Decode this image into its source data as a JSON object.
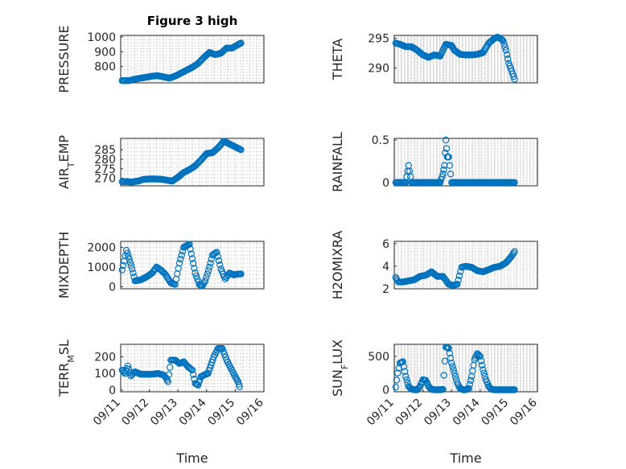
{
  "chart_data": [
    {
      "type": "scatter",
      "title": "Figure 3 high",
      "ylabel": "PRESSURE",
      "ylim": [
        690,
        1010
      ],
      "yticks": [
        800,
        900,
        1000
      ],
      "xlim": [
        0,
        5
      ],
      "xticks": [],
      "xticklabels": [],
      "xlabel": "",
      "grid": true,
      "x": [
        0.05,
        0.15,
        0.3,
        0.5,
        0.7,
        0.9,
        1.1,
        1.3,
        1.5,
        1.7,
        1.9,
        2.1,
        2.3,
        2.5,
        2.7,
        2.9,
        3.1,
        3.3,
        3.5,
        3.7,
        3.9,
        4.1,
        4.2
      ],
      "y": [
        705,
        705,
        705,
        715,
        722,
        728,
        735,
        738,
        730,
        722,
        735,
        755,
        775,
        795,
        820,
        860,
        895,
        880,
        890,
        925,
        925,
        948,
        958
      ]
    },
    {
      "type": "scatter",
      "ylabel": "THETA",
      "ylim": [
        287.5,
        295.5
      ],
      "yticks": [
        290,
        295
      ],
      "xlim": [
        0,
        5
      ],
      "xticks": [],
      "xticklabels": [],
      "xlabel": "",
      "grid": true,
      "x": [
        0.05,
        0.2,
        0.4,
        0.6,
        0.8,
        1.0,
        1.2,
        1.4,
        1.6,
        1.8,
        2.0,
        2.1,
        2.3,
        2.5,
        2.7,
        2.9,
        3.1,
        3.3,
        3.5,
        3.6,
        3.7,
        3.8,
        3.9,
        4.0,
        4.1,
        4.2
      ],
      "y": [
        294.2,
        294.0,
        293.6,
        293.6,
        293.0,
        292.2,
        291.8,
        292.2,
        292.0,
        294.0,
        293.8,
        293.0,
        292.3,
        292.2,
        292.2,
        292.3,
        292.6,
        294.2,
        295.0,
        295.2,
        295.0,
        294.6,
        293.0,
        290.8,
        289.5,
        288.1
      ]
    },
    {
      "type": "scatter",
      "ylabel": "AIR_TEMP",
      "ylim": [
        266,
        291
      ],
      "yticks": [
        270,
        275,
        280,
        285
      ],
      "xlim": [
        0,
        5
      ],
      "xticks": [],
      "xticklabels": [],
      "xlabel": "",
      "grid": true,
      "x": [
        0.05,
        0.2,
        0.4,
        0.6,
        0.8,
        1.0,
        1.2,
        1.4,
        1.6,
        1.8,
        2.0,
        2.2,
        2.4,
        2.6,
        2.8,
        3.0,
        3.2,
        3.4,
        3.6,
        3.8,
        4.0,
        4.2
      ],
      "y": [
        268.2,
        268.2,
        268.0,
        268.5,
        269.4,
        269.6,
        269.6,
        269.5,
        269.0,
        268.5,
        270.5,
        273.0,
        274.5,
        276.5,
        279.5,
        283.0,
        283.4,
        286.0,
        289.5,
        288.0,
        286.5,
        285.0
      ]
    },
    {
      "type": "scatter",
      "ylabel": "RAINFALL",
      "ylim": [
        -0.04,
        0.52
      ],
      "yticks": [
        0,
        0.5
      ],
      "xlim": [
        0,
        5
      ],
      "xticks": [],
      "xticklabels": [],
      "xlabel": "",
      "grid": true,
      "x": [
        0.05,
        0.2,
        0.3,
        0.4,
        0.5,
        0.6,
        0.8,
        1.0,
        1.2,
        1.4,
        1.5,
        1.6,
        1.7,
        1.75,
        1.8,
        1.85,
        1.9,
        2.0,
        2.2,
        2.4,
        2.6,
        2.8,
        3.0,
        3.2,
        3.4,
        3.6,
        3.8,
        4.0,
        4.2
      ],
      "y": [
        0,
        0,
        0,
        0,
        0.2,
        0,
        0,
        0,
        0,
        0,
        0,
        0,
        0.1,
        0.2,
        0.5,
        0.3,
        0.3,
        0,
        0,
        0,
        0,
        0,
        0,
        0,
        0,
        0,
        0,
        0,
        0
      ]
    },
    {
      "type": "scatter",
      "ylabel": "MIXDEPTH",
      "ylim": [
        -100,
        2300
      ],
      "yticks": [
        0,
        1000,
        2000
      ],
      "xlim": [
        0,
        5
      ],
      "xticks": [],
      "xticklabels": [],
      "xlabel": "",
      "grid": true,
      "x": [
        0.05,
        0.12,
        0.2,
        0.3,
        0.4,
        0.5,
        0.7,
        0.9,
        1.1,
        1.25,
        1.4,
        1.55,
        1.75,
        1.9,
        2.05,
        2.2,
        2.4,
        2.6,
        2.75,
        2.85,
        2.95,
        3.1,
        3.2,
        3.35,
        3.5,
        3.65,
        3.8,
        3.95,
        4.1,
        4.2
      ],
      "y": [
        850,
        1300,
        1850,
        1400,
        900,
        300,
        350,
        500,
        700,
        1000,
        850,
        650,
        200,
        120,
        1200,
        2000,
        2150,
        700,
        100,
        50,
        300,
        1000,
        1600,
        1750,
        900,
        400,
        700,
        600,
        650,
        650
      ]
    },
    {
      "type": "scatter",
      "ylabel": "H2OMIXRA",
      "ylim": [
        2,
        6.2
      ],
      "yticks": [
        2,
        4,
        6
      ],
      "xlim": [
        0,
        5
      ],
      "xticks": [],
      "xticklabels": [],
      "xlabel": "",
      "grid": true,
      "x": [
        0.05,
        0.15,
        0.3,
        0.5,
        0.7,
        0.9,
        1.1,
        1.3,
        1.5,
        1.7,
        1.9,
        2.05,
        2.2,
        2.35,
        2.5,
        2.7,
        2.9,
        3.1,
        3.3,
        3.5,
        3.7,
        3.9,
        4.1,
        4.2
      ],
      "y": [
        3.0,
        2.6,
        2.6,
        2.7,
        2.8,
        3.1,
        3.2,
        3.5,
        3.1,
        3.1,
        2.4,
        2.3,
        2.4,
        3.9,
        4.0,
        3.9,
        3.6,
        3.5,
        3.7,
        3.9,
        4.0,
        4.3,
        4.9,
        5.3
      ]
    },
    {
      "type": "scatter",
      "ylabel": "TERR_MSL",
      "ylim": [
        -10,
        275
      ],
      "yticks": [
        0,
        100,
        200
      ],
      "xlim": [
        0,
        5
      ],
      "xticks": [
        0,
        1,
        2,
        3,
        4,
        5
      ],
      "xticklabels": [
        "09/11",
        "09/12",
        "09/13",
        "09/14",
        "09/15",
        "09/16"
      ],
      "xlabel": "Time",
      "grid": true,
      "x": [
        0.05,
        0.15,
        0.25,
        0.35,
        0.5,
        0.7,
        0.9,
        1.1,
        1.3,
        1.5,
        1.6,
        1.65,
        1.75,
        1.9,
        2.05,
        2.2,
        2.35,
        2.5,
        2.6,
        2.7,
        2.8,
        2.9,
        3.05,
        3.25,
        3.4,
        3.55,
        3.7,
        3.85,
        4.0,
        4.1,
        4.15
      ],
      "y": [
        120,
        100,
        145,
        85,
        110,
        95,
        95,
        95,
        100,
        90,
        70,
        50,
        180,
        180,
        160,
        170,
        140,
        120,
        40,
        30,
        80,
        90,
        100,
        200,
        250,
        250,
        180,
        130,
        80,
        50,
        20
      ]
    },
    {
      "type": "scatter",
      "ylabel": "SUN_FLUX",
      "ylim": [
        -30,
        680
      ],
      "yticks": [
        0,
        500
      ],
      "xlim": [
        0,
        5
      ],
      "xticks": [
        0,
        1,
        2,
        3,
        4,
        5
      ],
      "xticklabels": [
        "09/11",
        "09/12",
        "09/13",
        "09/14",
        "09/15",
        "09/16"
      ],
      "xlabel": "Time",
      "grid": true,
      "x": [
        0.05,
        0.12,
        0.2,
        0.3,
        0.4,
        0.5,
        0.6,
        0.7,
        0.8,
        0.9,
        1.0,
        1.1,
        1.2,
        1.3,
        1.4,
        1.5,
        1.6,
        1.7,
        1.8,
        1.9,
        2.0,
        2.1,
        2.2,
        2.3,
        2.4,
        2.5,
        2.6,
        2.7,
        2.8,
        2.9,
        3.0,
        3.1,
        3.2,
        3.3,
        3.4,
        3.5,
        3.6,
        3.7,
        3.8,
        3.9,
        4.0,
        4.1,
        4.2
      ],
      "y": [
        40,
        250,
        400,
        420,
        200,
        50,
        10,
        0,
        0,
        50,
        150,
        140,
        50,
        5,
        0,
        0,
        0,
        5,
        640,
        620,
        400,
        250,
        100,
        20,
        0,
        0,
        20,
        200,
        450,
        540,
        500,
        300,
        150,
        50,
        5,
        0,
        0,
        0,
        0,
        0,
        0,
        0,
        0
      ]
    }
  ]
}
